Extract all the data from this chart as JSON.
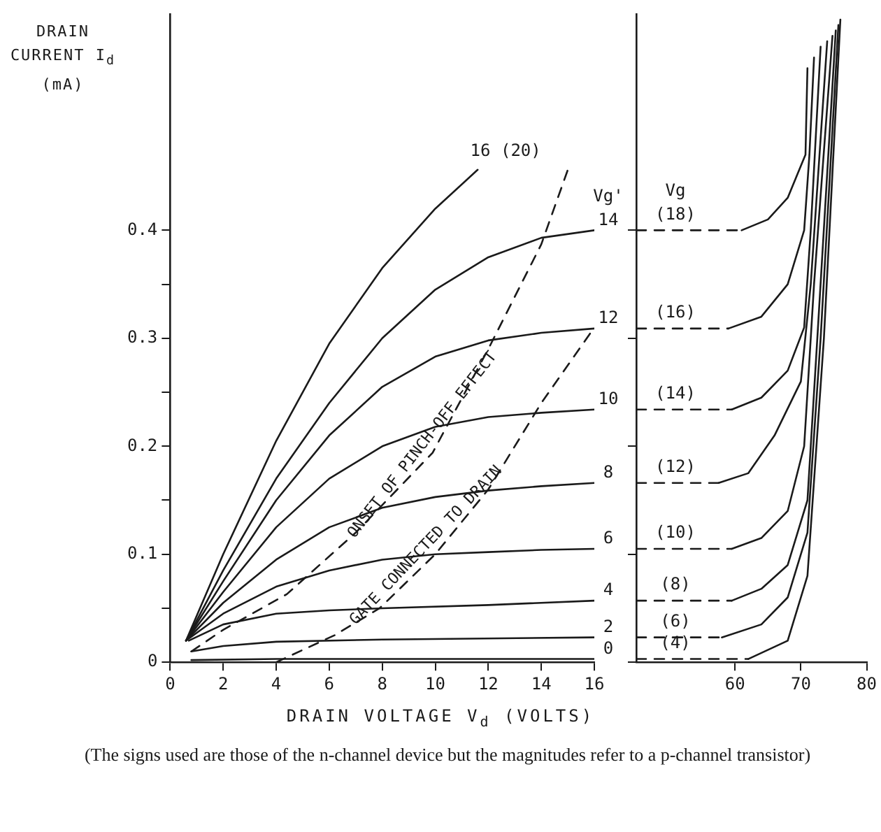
{
  "chart_data": [
    {
      "type": "line",
      "xlabel": "DRAIN VOLTAGE V$_{d}$ (VOLTS)",
      "ylabel": "DRAIN CURRENT I$_{d}$ (mA)",
      "legend_title": "Vg'",
      "xlim": [
        0,
        16
      ],
      "ylim": [
        0,
        0.6
      ],
      "xticks": [
        0,
        2,
        4,
        6,
        8,
        10,
        12,
        14,
        16
      ],
      "yticks": [
        0,
        {
          "value": 0.05,
          "label": null
        },
        0.1,
        {
          "value": 0.15,
          "label": null
        },
        0.2,
        {
          "value": 0.25,
          "label": null
        },
        0.3,
        {
          "value": 0.35,
          "label": null
        },
        0.4
      ],
      "grid": false,
      "legend": false,
      "marker": "none",
      "line_style": "solid",
      "series": [
        {
          "name": "16 (20)",
          "color": "#1a1a1a",
          "x": [
            0.6,
            2,
            4,
            6,
            8,
            10,
            11.6
          ],
          "values": [
            0.02,
            0.1,
            0.205,
            0.295,
            0.365,
            0.42,
            0.456
          ]
        },
        {
          "name": "14",
          "color": "#1a1a1a",
          "x": [
            0.6,
            2,
            4,
            6,
            8,
            10,
            12,
            14,
            16
          ],
          "values": [
            0.02,
            0.085,
            0.17,
            0.24,
            0.3,
            0.345,
            0.375,
            0.393,
            0.4
          ]
        },
        {
          "name": "12",
          "color": "#1a1a1a",
          "x": [
            0.6,
            2,
            4,
            6,
            8,
            10,
            12,
            14,
            16
          ],
          "values": [
            0.02,
            0.075,
            0.15,
            0.21,
            0.255,
            0.283,
            0.298,
            0.305,
            0.309
          ]
        },
        {
          "name": "10",
          "color": "#1a1a1a",
          "x": [
            0.6,
            2,
            4,
            6,
            8,
            10,
            12,
            14,
            16
          ],
          "values": [
            0.02,
            0.065,
            0.125,
            0.17,
            0.2,
            0.218,
            0.227,
            0.231,
            0.234
          ]
        },
        {
          "name": "8",
          "color": "#1a1a1a",
          "x": [
            0.6,
            2,
            4,
            6,
            8,
            10,
            12,
            14,
            16
          ],
          "values": [
            0.02,
            0.055,
            0.095,
            0.125,
            0.143,
            0.153,
            0.159,
            0.163,
            0.166
          ]
        },
        {
          "name": "6",
          "color": "#1a1a1a",
          "x": [
            0.6,
            2,
            4,
            6,
            8,
            10,
            12,
            14,
            16
          ],
          "values": [
            0.02,
            0.045,
            0.07,
            0.085,
            0.095,
            0.1,
            0.102,
            0.104,
            0.105
          ]
        },
        {
          "name": "4",
          "color": "#1a1a1a",
          "x": [
            0.7,
            2,
            4,
            6,
            8,
            12,
            16
          ],
          "values": [
            0.02,
            0.035,
            0.045,
            0.048,
            0.05,
            0.053,
            0.057
          ]
        },
        {
          "name": "2",
          "color": "#1a1a1a",
          "x": [
            0.8,
            2,
            4,
            8,
            16
          ],
          "values": [
            0.01,
            0.015,
            0.019,
            0.021,
            0.023
          ]
        },
        {
          "name": "0",
          "color": "#1a1a1a",
          "x": [
            0.8,
            4,
            16
          ],
          "values": [
            0.002,
            0.003,
            0.003
          ]
        },
        {
          "name": "ONSET OF PINCH-OFF EFFECT",
          "color": "#1a1a1a",
          "line_style": "dashed",
          "x": [
            0.8,
            2,
            4.4,
            7,
            9.9,
            12,
            14,
            15
          ],
          "values": [
            0.01,
            0.03,
            0.063,
            0.12,
            0.194,
            0.29,
            0.387,
            0.456
          ]
        },
        {
          "name": "GATE CONNECTED TO DRAIN",
          "color": "#1a1a1a",
          "line_style": "dashed",
          "x": [
            4,
            6.2,
            7.9,
            10,
            12,
            14,
            16
          ],
          "values": [
            0,
            0.025,
            0.05,
            0.1,
            0.16,
            0.24,
            0.31
          ]
        }
      ],
      "annotations": [
        "(The signs used are those of the n-channel device but the magnitudes refer to a p-channel transistor)"
      ]
    },
    {
      "type": "line",
      "legend_title": "Vg",
      "xlim": [
        45,
        80
      ],
      "ylim": [
        0,
        0.6
      ],
      "xticks": [
        60,
        70,
        80
      ],
      "yticks": [
        0,
        0.1,
        0.2,
        0.3,
        0.4
      ],
      "tick_labels": "x",
      "grid": false,
      "legend": false,
      "marker": "none",
      "line_style": "solid",
      "series": [
        {
          "name": "(18)",
          "color": "#1a1a1a",
          "line_style": "dashed",
          "x": [
            45,
            61
          ],
          "values": [
            0.4,
            0.4
          ]
        },
        {
          "color": "#1a1a1a",
          "x": [
            61,
            65,
            68,
            70.7,
            71
          ],
          "values": [
            0.4,
            0.41,
            0.43,
            0.47,
            0.55
          ]
        },
        {
          "name": "(16)",
          "color": "#1a1a1a",
          "line_style": "dashed",
          "x": [
            45,
            59
          ],
          "values": [
            0.309,
            0.309
          ]
        },
        {
          "color": "#1a1a1a",
          "x": [
            59,
            64,
            68,
            70.5,
            71.3,
            72
          ],
          "values": [
            0.309,
            0.32,
            0.35,
            0.4,
            0.47,
            0.56
          ]
        },
        {
          "name": "(14)",
          "color": "#1a1a1a",
          "line_style": "dashed",
          "x": [
            45,
            59.5
          ],
          "values": [
            0.234,
            0.234
          ]
        },
        {
          "color": "#1a1a1a",
          "x": [
            59.5,
            64,
            68,
            70.5,
            71.5,
            73
          ],
          "values": [
            0.234,
            0.245,
            0.27,
            0.31,
            0.4,
            0.57
          ]
        },
        {
          "name": "(12)",
          "color": "#1a1a1a",
          "line_style": "dashed",
          "x": [
            45,
            57.5
          ],
          "values": [
            0.166,
            0.166
          ]
        },
        {
          "color": "#1a1a1a",
          "x": [
            57.5,
            62,
            66,
            70,
            71.5,
            74
          ],
          "values": [
            0.166,
            0.175,
            0.21,
            0.26,
            0.35,
            0.575
          ]
        },
        {
          "name": "(10)",
          "color": "#1a1a1a",
          "line_style": "dashed",
          "x": [
            45,
            59.5
          ],
          "values": [
            0.105,
            0.105
          ]
        },
        {
          "color": "#1a1a1a",
          "x": [
            59.5,
            64,
            68,
            70.5,
            72,
            74.8
          ],
          "values": [
            0.105,
            0.115,
            0.14,
            0.2,
            0.35,
            0.58
          ]
        },
        {
          "name": "(8)",
          "color": "#1a1a1a",
          "line_style": "dashed",
          "x": [
            45,
            59.5
          ],
          "values": [
            0.057,
            0.057
          ]
        },
        {
          "color": "#1a1a1a",
          "x": [
            59.5,
            64,
            68,
            71,
            72.5,
            75.3
          ],
          "values": [
            0.057,
            0.068,
            0.09,
            0.15,
            0.3,
            0.585
          ]
        },
        {
          "name": "(6)",
          "color": "#1a1a1a",
          "line_style": "dashed",
          "x": [
            45,
            58
          ],
          "values": [
            0.023,
            0.023
          ]
        },
        {
          "color": "#1a1a1a",
          "x": [
            58,
            64,
            68,
            71,
            73,
            75.7
          ],
          "values": [
            0.023,
            0.035,
            0.06,
            0.12,
            0.3,
            0.59
          ]
        },
        {
          "name": "(4)",
          "color": "#1a1a1a",
          "line_style": "dashed",
          "x": [
            45,
            62
          ],
          "values": [
            0.003,
            0.003
          ]
        },
        {
          "color": "#1a1a1a",
          "x": [
            62,
            68,
            71,
            73.5,
            76
          ],
          "values": [
            0.003,
            0.02,
            0.08,
            0.3,
            0.595
          ]
        }
      ]
    }
  ]
}
